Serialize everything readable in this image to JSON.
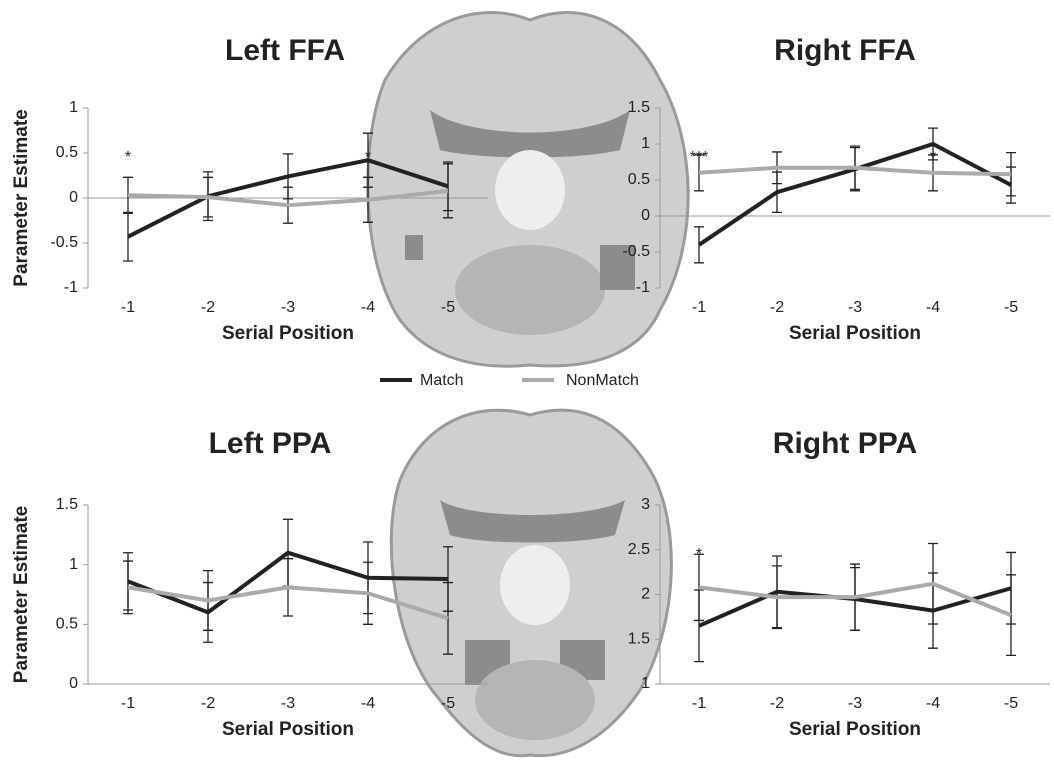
{
  "chart_data": [
    {
      "type": "line",
      "title": "Left FFA",
      "y_label": "Parameter Estimate",
      "x_label": "Serial Position",
      "categories": [
        "-1",
        "-2",
        "-3",
        "-4",
        "-5"
      ],
      "ylim": [
        -1,
        1
      ],
      "yticks": [
        -1,
        -0.5,
        0,
        0.5,
        1
      ],
      "series": [
        {
          "name": "Match",
          "color": "#222222",
          "values": [
            -0.43,
            0.02,
            0.24,
            0.42,
            0.13
          ],
          "errors": [
            0.27,
            0.27,
            0.25,
            0.3,
            0.27
          ]
        },
        {
          "name": "NonMatch",
          "color": "#aaaaaa",
          "values": [
            0.03,
            0.01,
            -0.08,
            -0.02,
            0.08
          ],
          "errors": [
            0.2,
            0.22,
            0.2,
            0.25,
            0.3
          ]
        }
      ],
      "annotations": [
        "*",
        null,
        null,
        "*",
        null
      ]
    },
    {
      "type": "line",
      "title": "Right FFA",
      "x_label": "Serial Position",
      "categories": [
        "-1",
        "-2",
        "-3",
        "-4",
        "-5"
      ],
      "ylim": [
        -1,
        1.5
      ],
      "yticks": [
        -1,
        -0.5,
        0,
        0.5,
        1,
        1.5
      ],
      "series": [
        {
          "name": "Match",
          "color": "#222222",
          "values": [
            -0.4,
            0.33,
            0.65,
            1.0,
            0.43
          ],
          "errors": [
            0.25,
            0.28,
            0.3,
            0.22,
            0.25
          ]
        },
        {
          "name": "NonMatch",
          "color": "#aaaaaa",
          "values": [
            0.6,
            0.67,
            0.67,
            0.6,
            0.58
          ],
          "errors": [
            0.25,
            0.22,
            0.3,
            0.25,
            0.3
          ]
        }
      ],
      "annotations": [
        "***",
        null,
        null,
        "*",
        null
      ]
    },
    {
      "type": "line",
      "title": "Left PPA",
      "y_label": "Parameter Estimate",
      "x_label": "Serial Position",
      "categories": [
        "-1",
        "-2",
        "-3",
        "-4",
        "-5"
      ],
      "ylim": [
        0,
        1.5
      ],
      "yticks": [
        0,
        0.5,
        1,
        1.5
      ],
      "series": [
        {
          "name": "Match",
          "color": "#222222",
          "values": [
            0.86,
            0.6,
            1.1,
            0.89,
            0.88
          ],
          "errors": [
            0.24,
            0.25,
            0.28,
            0.3,
            0.27
          ]
        },
        {
          "name": "NonMatch",
          "color": "#aaaaaa",
          "values": [
            0.81,
            0.7,
            0.81,
            0.76,
            0.55
          ],
          "errors": [
            0.22,
            0.25,
            0.24,
            0.26,
            0.3
          ]
        }
      ],
      "annotations": [
        null,
        null,
        null,
        null,
        null
      ]
    },
    {
      "type": "line",
      "title": "Right PPA",
      "x_label": "Serial Position",
      "categories": [
        "-1",
        "-2",
        "-3",
        "-4",
        "-5"
      ],
      "ylim": [
        1,
        3
      ],
      "yticks": [
        1,
        1.5,
        2,
        2.5,
        3
      ],
      "series": [
        {
          "name": "Match",
          "color": "#222222",
          "values": [
            1.65,
            2.03,
            1.95,
            1.82,
            2.07
          ],
          "errors": [
            0.4,
            0.4,
            0.35,
            0.42,
            0.4
          ]
        },
        {
          "name": "NonMatch",
          "color": "#aaaaaa",
          "values": [
            2.08,
            1.97,
            1.97,
            2.12,
            1.77
          ],
          "errors": [
            0.37,
            0.35,
            0.37,
            0.45,
            0.45
          ]
        }
      ],
      "annotations": [
        "*",
        null,
        null,
        null,
        null
      ]
    }
  ]
}
